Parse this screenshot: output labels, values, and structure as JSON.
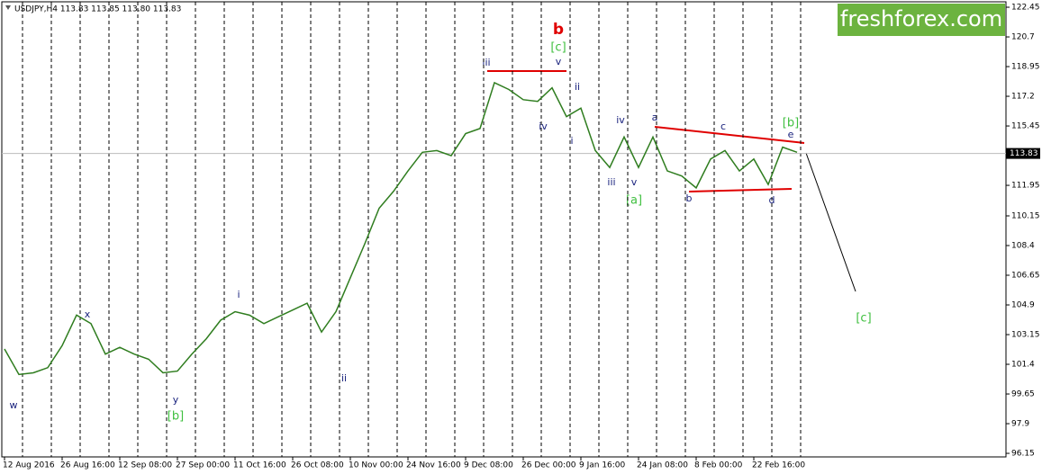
{
  "chart_data": {
    "type": "line",
    "title": "USDJPY,H4  113.83 113.85 113.80 113.83",
    "brand": "freshforex.com",
    "categories": [
      "12 Aug 2016",
      null,
      null,
      null,
      "26 Aug 16:00",
      null,
      null,
      null,
      "12 Sep 08:00",
      null,
      null,
      null,
      "27 Sep 00:00",
      null,
      null,
      null,
      "11 Oct 16:00",
      null,
      null,
      null,
      "26 Oct 08:00",
      null,
      null,
      null,
      "10 Nov 00:00",
      null,
      null,
      null,
      "24 Nov 16:00",
      null,
      null,
      null,
      "9 Dec 08:00",
      null,
      null,
      null,
      "26 Dec 00:00",
      null,
      null,
      null,
      "9 Jan 16:00",
      null,
      null,
      null,
      "24 Jan 08:00",
      null,
      null,
      null,
      "8 Feb 00:00",
      null,
      null,
      null,
      "22 Feb 16:00",
      null,
      null,
      null
    ],
    "series": [
      {
        "name": "USDJPY",
        "color": "#2f7d1f",
        "values": [
          102.3,
          100.8,
          100.9,
          101.2,
          102.5,
          104.3,
          103.8,
          102.0,
          102.4,
          102.0,
          101.7,
          100.9,
          101.0,
          102.0,
          102.9,
          104.0,
          104.5,
          104.3,
          103.8,
          104.2,
          104.6,
          105.0,
          103.3,
          104.5,
          106.5,
          108.5,
          110.6,
          111.6,
          112.8,
          113.9,
          114.0,
          113.7,
          115.0,
          115.3,
          118.0,
          117.6,
          117.0,
          116.9,
          117.7,
          116.0,
          116.5,
          114.0,
          113.0,
          114.8,
          113.0,
          114.8,
          112.8,
          112.5,
          111.8,
          113.5,
          114.0,
          112.8,
          113.5,
          112.0,
          114.2,
          113.9
        ]
      }
    ],
    "last_price": 113.83,
    "ylim": [
      95.94,
      122.77
    ],
    "yticks": [
      122.45,
      120.7,
      118.95,
      117.2,
      115.45,
      113.7,
      111.95,
      110.15,
      108.4,
      106.65,
      104.9,
      103.15,
      101.4,
      99.65,
      97.9,
      96.15
    ],
    "grid": true,
    "annotations": [
      "w",
      "x",
      "y",
      "[b]",
      "i",
      "ii",
      "iii",
      "b",
      "[c]",
      "v",
      "ii",
      "iv",
      "i",
      "iv",
      "a",
      "iii",
      "v",
      "[a]",
      "b",
      "c",
      "d",
      "[b]",
      "e",
      "[c]"
    ]
  }
}
